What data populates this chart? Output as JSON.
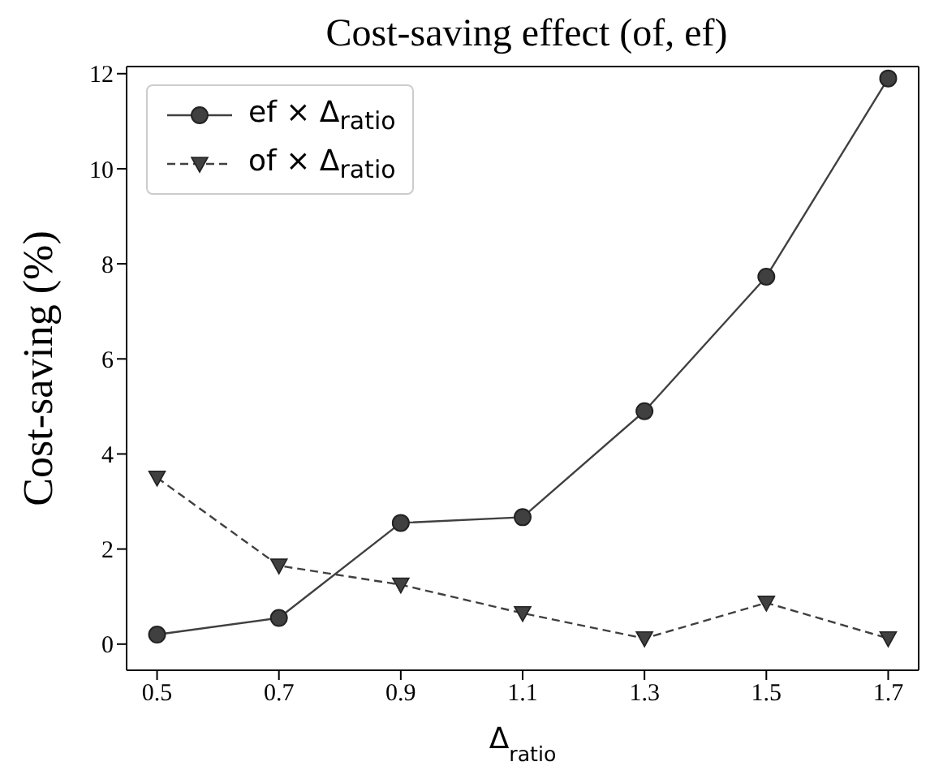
{
  "chart_data": {
    "type": "line",
    "title": "Cost-saving effect (of, ef)",
    "xlabel": "Δ$_{ratio}$",
    "ylabel": "Cost-saving (%)",
    "x": [
      0.5,
      0.7,
      0.9,
      1.1,
      1.3,
      1.5,
      1.7
    ],
    "series": [
      {
        "name": "ef × Δ$_{ratio}$",
        "color": "#404040",
        "marker": "circle",
        "line_style": "solid",
        "values": [
          0.2,
          0.55,
          2.55,
          2.67,
          4.9,
          7.73,
          11.9
        ]
      },
      {
        "name": "of × Δ$_{ratio}$",
        "color": "#404040",
        "marker": "triangle",
        "line_style": "dashed",
        "values": [
          3.5,
          1.65,
          1.25,
          0.65,
          0.12,
          0.87,
          0.12
        ]
      }
    ],
    "xlim": [
      0.45,
      1.75
    ],
    "xticks": [
      0.5,
      0.7,
      0.9,
      1.1,
      1.3,
      1.5,
      1.7
    ],
    "ylim": [
      -0.55,
      12.15
    ],
    "yticks": [
      0,
      2,
      4,
      6,
      8,
      10,
      12
    ],
    "grid": false,
    "legend": "top left"
  }
}
